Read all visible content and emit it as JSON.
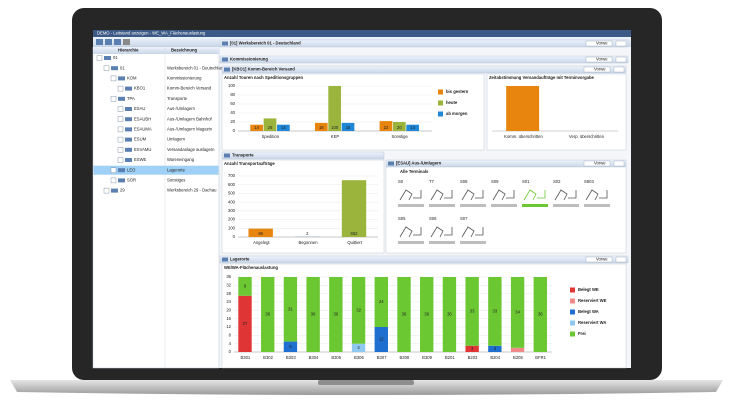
{
  "window": {
    "title": "DEMO - Leitstand anzeigen - WE_WA_Flächenauslastung"
  },
  "tree": {
    "headers": [
      "Hierarchie",
      "Bezeichnung"
    ],
    "rows": [
      {
        "code": "01"
      },
      {
        "code": "01",
        "label": "Werksbereich 01 - Deutschland"
      },
      {
        "code": "KOM",
        "label": "Kommissionierung"
      },
      {
        "code": "KBO1",
        "label": "Komm-Bereich Versand"
      },
      {
        "code": "TPA",
        "label": "Transporte"
      },
      {
        "code": "ESAU",
        "label": "Aus-/Umlagern"
      },
      {
        "code": "ESAUBH",
        "label": "Aus-/Umlagern Bahnhof"
      },
      {
        "code": "ESAUMA",
        "label": "Aus-/Umlagern Magazin"
      },
      {
        "code": "ESUM",
        "label": "Umlagern"
      },
      {
        "code": "ESVAMU",
        "label": "Versandanlage auslagern"
      },
      {
        "code": "ESWE",
        "label": "Wareneingang"
      },
      {
        "code": "LEO",
        "label": "Lagerorte"
      },
      {
        "code": "SOR",
        "label": "Sonstiges"
      },
      {
        "code": "29",
        "label": "Werksbereich 29 - Dachau"
      }
    ]
  },
  "header": {
    "title": "[01] Werksbereich 01 - Deutschland",
    "button": "Vorwe"
  },
  "panels": {
    "kommissionierung": "Kommissionierung",
    "kbo": "[KBO1] Komm-Bereich Versand",
    "transporte": "Transporte",
    "esau": "[ESAU] Aus-/Umlagern",
    "lagerorte": "Lagerorte"
  },
  "terminals": {
    "title": "Alle Terminals",
    "labels": [
      "S0",
      "T7",
      "S08",
      "S09",
      "S01",
      "S02",
      "S803",
      "S05",
      "S06",
      "S07"
    ]
  },
  "chart_data": [
    {
      "type": "bar",
      "title": "Anzahl Touren nach Speditionsgruppen",
      "categories": [
        "Spedition",
        "KEP",
        "Sonstige"
      ],
      "series": [
        {
          "name": "bis gestern",
          "color": "#e8850f",
          "values": [
            14,
            18,
            22
          ]
        },
        {
          "name": "heute",
          "color": "#9bb53c",
          "values": [
            28,
            100,
            20
          ]
        },
        {
          "name": "ab morgen",
          "color": "#1e88d6",
          "values": [
            14,
            18,
            14
          ]
        }
      ],
      "ylim": [
        0,
        100
      ],
      "yticks": [
        0,
        20,
        40,
        60,
        80,
        100
      ],
      "grid": true,
      "legend": "right",
      "show_values": true
    },
    {
      "type": "bar",
      "title": "Zeitabstimmung Versandaufträge mit Terminvorgabe",
      "categories": [
        "Komm. überschritten",
        "Verp. überschritten"
      ],
      "series": [
        {
          "name": "Aufträge",
          "color": "#e8850f",
          "values": [
            1,
            0
          ]
        }
      ],
      "ylim": [
        0,
        1
      ]
    },
    {
      "type": "bar",
      "title": "Anzahl Transportaufträge",
      "categories": [
        "Angelegt",
        "Begonnen",
        "Quittiert"
      ],
      "series": [
        {
          "name": "Aufträge",
          "colors": [
            "#e8850f",
            "#1e88d6",
            "#9bb53c"
          ],
          "values": [
            96,
            2,
            652
          ]
        }
      ],
      "ylim": [
        0,
        700
      ],
      "yticks": [
        0,
        100,
        200,
        300,
        400,
        500,
        600,
        700
      ],
      "grid": true,
      "show_values": true
    },
    {
      "type": "bar",
      "stacked": true,
      "title": "WE/WA-Flächenauslastung",
      "categories": [
        "B301",
        "B302",
        "B303",
        "B304",
        "B305",
        "B306",
        "B307",
        "B308",
        "B309",
        "B201",
        "B203",
        "B204",
        "B205",
        "BFR1"
      ],
      "series": [
        {
          "name": "Belegt WE",
          "color": "#e03535",
          "values": [
            27,
            0,
            0,
            0,
            0,
            0,
            0,
            0,
            0,
            0,
            3,
            0,
            0,
            0
          ]
        },
        {
          "name": "Reserviert WE",
          "color": "#f08a8a",
          "values": [
            0,
            0,
            0,
            0,
            0,
            0,
            0,
            0,
            0,
            0,
            0,
            0,
            2,
            0
          ]
        },
        {
          "name": "Belegt WA",
          "color": "#1e6fd0",
          "values": [
            0,
            0,
            5,
            0,
            0,
            0,
            12,
            0,
            0,
            0,
            0,
            3,
            0,
            0
          ]
        },
        {
          "name": "Reserviert WA",
          "color": "#8fc8f0",
          "values": [
            0,
            0,
            0,
            0,
            0,
            4,
            0,
            0,
            0,
            0,
            0,
            0,
            0,
            0
          ]
        },
        {
          "name": "Frei",
          "color": "#6cc832",
          "values": [
            9,
            36,
            31,
            36,
            36,
            32,
            24,
            36,
            36,
            36,
            33,
            33,
            34,
            36
          ]
        }
      ],
      "ylim": [
        0,
        36
      ],
      "yticks": [
        0,
        4,
        8,
        12,
        16,
        20,
        24,
        28,
        32,
        36
      ],
      "grid": true,
      "legend": "right",
      "show_values": true
    }
  ]
}
